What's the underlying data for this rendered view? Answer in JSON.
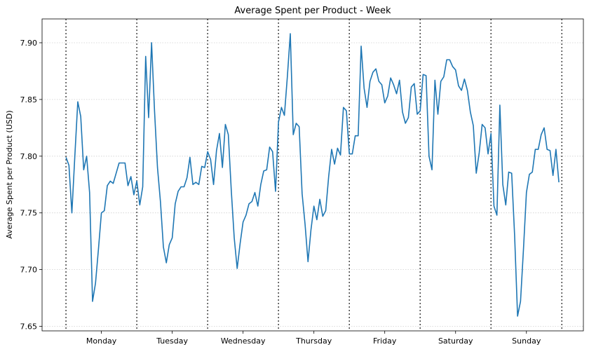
{
  "chart_data": {
    "type": "line",
    "title": "Average Spent per Product - Week",
    "xlabel": "",
    "ylabel": "Average Spent per Product (USD)",
    "ylim": [
      7.646,
      7.921
    ],
    "xlim": [
      -8.1,
      175.3
    ],
    "grid": "y-dotted",
    "line_color": "#1f77b4",
    "yticks": [
      7.65,
      7.7,
      7.75,
      7.8,
      7.85,
      7.9
    ],
    "ytick_labels": [
      "7.65",
      "7.70",
      "7.75",
      "7.80",
      "7.85",
      "7.90"
    ],
    "day_boundaries": [
      0,
      24,
      48,
      72,
      96,
      120,
      144,
      168
    ],
    "xtick_positions": [
      12,
      36,
      60,
      84,
      108,
      132,
      156
    ],
    "xtick_labels": [
      "Monday",
      "Tuesday",
      "Wednesday",
      "Thursday",
      "Friday",
      "Saturday",
      "Sunday"
    ],
    "series": [
      {
        "name": "Average Spent per Product",
        "values": [
          7.799,
          7.792,
          7.75,
          7.8,
          7.848,
          7.835,
          7.788,
          7.8,
          7.768,
          7.672,
          7.688,
          7.718,
          7.75,
          7.752,
          7.774,
          7.778,
          7.776,
          7.785,
          7.794,
          7.794,
          7.794,
          7.774,
          7.782,
          7.766,
          7.778,
          7.757,
          7.773,
          7.888,
          7.834,
          7.9,
          7.84,
          7.79,
          7.76,
          7.72,
          7.706,
          7.722,
          7.728,
          7.758,
          7.769,
          7.773,
          7.773,
          7.781,
          7.799,
          7.775,
          7.777,
          7.775,
          7.791,
          7.79,
          7.804,
          7.797,
          7.775,
          7.805,
          7.82,
          7.79,
          7.828,
          7.819,
          7.77,
          7.728,
          7.701,
          7.723,
          7.742,
          7.748,
          7.758,
          7.76,
          7.768,
          7.756,
          7.775,
          7.787,
          7.788,
          7.808,
          7.804,
          7.769,
          7.83,
          7.843,
          7.836,
          7.87,
          7.908,
          7.819,
          7.829,
          7.826,
          7.767,
          7.74,
          7.707,
          7.735,
          7.756,
          7.744,
          7.762,
          7.747,
          7.752,
          7.782,
          7.806,
          7.793,
          7.807,
          7.801,
          7.843,
          7.84,
          7.802,
          7.802,
          7.818,
          7.818,
          7.897,
          7.86,
          7.843,
          7.866,
          7.874,
          7.877,
          7.866,
          7.863,
          7.847,
          7.853,
          7.869,
          7.863,
          7.855,
          7.867,
          7.839,
          7.829,
          7.834,
          7.861,
          7.864,
          7.837,
          7.84,
          7.872,
          7.871,
          7.8,
          7.788,
          7.867,
          7.837,
          7.866,
          7.87,
          7.885,
          7.885,
          7.879,
          7.876,
          7.862,
          7.858,
          7.868,
          7.858,
          7.839,
          7.827,
          7.785,
          7.803,
          7.828,
          7.825,
          7.802,
          7.82,
          7.756,
          7.748,
          7.845,
          7.775,
          7.757,
          7.786,
          7.785,
          7.73,
          7.659,
          7.672,
          7.718,
          7.768,
          7.784,
          7.786,
          7.806,
          7.806,
          7.819,
          7.825,
          7.806,
          7.805,
          7.783,
          7.806,
          7.777
        ]
      }
    ]
  }
}
